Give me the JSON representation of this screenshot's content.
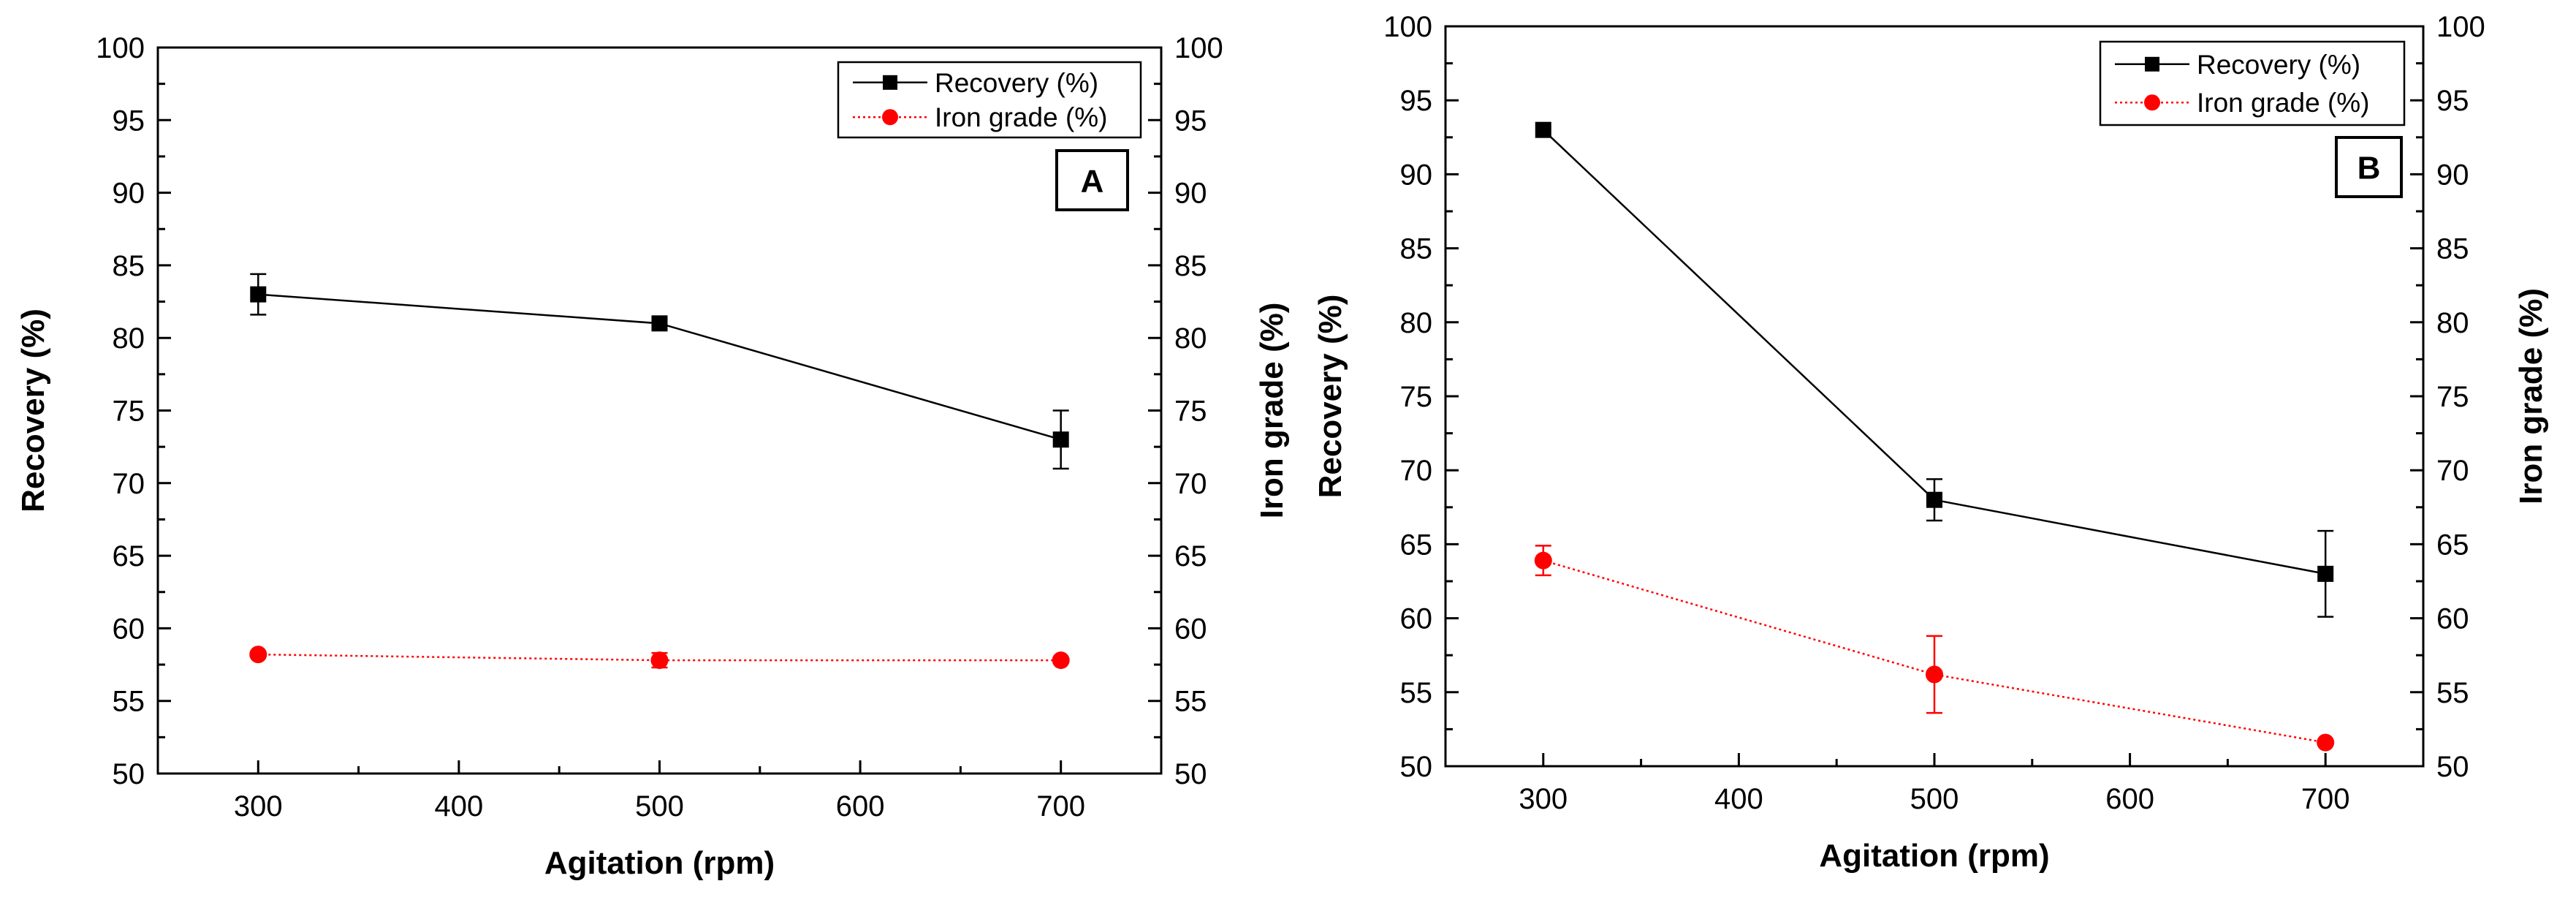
{
  "chart_data": [
    {
      "type": "line",
      "panel_label": "A",
      "xlabel": "Agitation (rpm)",
      "ylabel": "Recovery (%)",
      "y2label": "Iron grade (%)",
      "xlim": [
        250,
        750
      ],
      "xticks": [
        300,
        400,
        500,
        600,
        700
      ],
      "ylim": [
        50,
        100
      ],
      "yticks": [
        50,
        55,
        60,
        65,
        70,
        75,
        80,
        85,
        90,
        95,
        100
      ],
      "y2lim": [
        50,
        100
      ],
      "y2ticks": [
        50,
        55,
        60,
        65,
        70,
        75,
        80,
        85,
        90,
        95,
        100
      ],
      "legend_position": "top-right",
      "x": [
        300,
        500,
        700
      ],
      "series": [
        {
          "name": "Recovery (%)",
          "axis": "left",
          "color": "#000000",
          "line": "solid",
          "marker": "square",
          "values": [
            83,
            81,
            73
          ],
          "errors": [
            1.4,
            0,
            2
          ]
        },
        {
          "name": "Iron grade (%)",
          "axis": "right",
          "color": "#ff0000",
          "line": "dotted",
          "marker": "circle",
          "values": [
            58.2,
            57.8,
            57.8
          ],
          "errors": [
            0,
            0.5,
            0
          ]
        }
      ]
    },
    {
      "type": "line",
      "panel_label": "B",
      "xlabel": "Agitation (rpm)",
      "ylabel": "Recovery (%)",
      "y2label": "Iron grade (%)",
      "xlim": [
        250,
        750
      ],
      "xticks": [
        300,
        400,
        500,
        600,
        700
      ],
      "ylim": [
        50,
        100
      ],
      "yticks": [
        50,
        55,
        60,
        65,
        70,
        75,
        80,
        85,
        90,
        95,
        100
      ],
      "y2lim": [
        50,
        100
      ],
      "y2ticks": [
        50,
        55,
        60,
        65,
        70,
        75,
        80,
        85,
        90,
        95,
        100
      ],
      "legend_position": "top-right",
      "x": [
        300,
        500,
        700
      ],
      "series": [
        {
          "name": "Recovery (%)",
          "axis": "left",
          "color": "#000000",
          "line": "solid",
          "marker": "square",
          "values": [
            93,
            68,
            63
          ],
          "errors": [
            0,
            1.4,
            2.9
          ]
        },
        {
          "name": "Iron grade (%)",
          "axis": "right",
          "color": "#ff0000",
          "line": "dotted",
          "marker": "circle",
          "values": [
            63.9,
            56.2,
            51.6
          ],
          "errors": [
            1,
            2.6,
            0
          ]
        }
      ]
    }
  ]
}
